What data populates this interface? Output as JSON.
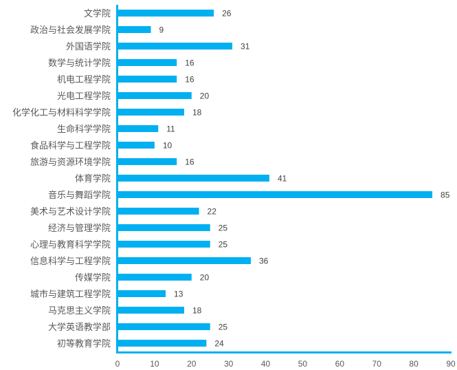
{
  "chart_data": {
    "type": "bar",
    "orientation": "horizontal",
    "categories": [
      "文学院",
      "政治与社会发展学院",
      "外国语学院",
      "数学与统计学院",
      "机电工程学院",
      "光电工程学院",
      "化学化工与材料科学学院",
      "生命科学学院",
      "食品科学与工程学院",
      "旅游与资源环境学院",
      "体育学院",
      "音乐与舞蹈学院",
      "美术与艺术设计学院",
      "经济与管理学院",
      "心理与教育科学学院",
      "信息科学与工程学院",
      "传媒学院",
      "城市与建筑工程学院",
      "马克思主义学院",
      "大学英语教学部",
      "初等教育学院"
    ],
    "values": [
      26,
      9,
      31,
      16,
      16,
      20,
      18,
      11,
      10,
      16,
      41,
      85,
      22,
      25,
      25,
      36,
      20,
      13,
      18,
      25,
      24
    ],
    "xlim": [
      0,
      90
    ],
    "xticks": [
      "0",
      "10",
      "20",
      "30",
      "40",
      "50",
      "60",
      "70",
      "80",
      "90"
    ],
    "grid": false,
    "legend": "none",
    "data_labels": true,
    "colors": {
      "bar": "#00B0F0",
      "axis": "#00B0F0"
    }
  }
}
